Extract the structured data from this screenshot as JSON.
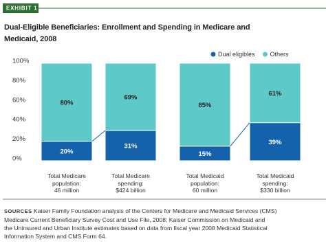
{
  "chart_data": {
    "type": "stacked_bar",
    "exhibit": "EXHIBIT 1",
    "title": "Dual-Eligible Beneficiaries: Enrollment and Spending in Medicare and\nMedicaid, 2008",
    "categories": [
      "Total Medicare\npopulation:\n46 million",
      "Total Medicare\nspending:\n$424 billion",
      "Total Medicaid\npopulation:\n60 million",
      "Total Medicaid\nspending:\n$330 billion"
    ],
    "series": [
      {
        "name": "Dual eligibles",
        "color": "#1462ac",
        "values": [
          20,
          31,
          15,
          39
        ],
        "value_labels": [
          "20%",
          "31%",
          "15%",
          "39%"
        ]
      },
      {
        "name": "Others",
        "color": "#5ec9c9",
        "values": [
          80,
          69,
          85,
          61
        ],
        "value_labels": [
          "80%",
          "69%",
          "85%",
          "61%"
        ]
      }
    ],
    "ylim": [
      0,
      100
    ],
    "yticks": [
      {
        "value": 0,
        "label": "0%"
      },
      {
        "value": 20,
        "label": "20%"
      },
      {
        "value": 40,
        "label": "40%"
      },
      {
        "value": 60,
        "label": "60%"
      },
      {
        "value": 80,
        "label": "80%"
      },
      {
        "value": 100,
        "label": "100%"
      }
    ],
    "grid": false,
    "legend": "top-right",
    "source_label": "SOURCES",
    "source": "Kaiser Family Foundation analysis of the Centers for Medicare and Medicaid Services (CMS)\nMedicare Current Beneficiary Survey Cost and Use File, 2008; Kaiser Commission on Medicaid and\nthe Uninsured and Urban Institute estimates based on data from fiscal year 2008 Medicaid Statistical\nInformation System and CMS Form 64."
  }
}
